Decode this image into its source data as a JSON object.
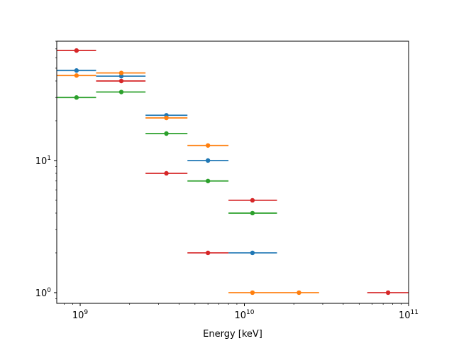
{
  "chart_data": {
    "type": "scatter",
    "xscale": "log",
    "yscale": "log",
    "xlabel": "Energy [keV]",
    "ylabel": "",
    "xlim": [
      720000000,
      100000000000
    ],
    "ylim": [
      0.83,
      80
    ],
    "grid": false,
    "x_ticks": [
      {
        "value": 1000000000,
        "base": "10",
        "exp": "9"
      },
      {
        "value": 10000000000,
        "base": "10",
        "exp": "10"
      },
      {
        "value": 100000000000,
        "base": "10",
        "exp": "11"
      }
    ],
    "y_ticks": [
      {
        "value": 1,
        "base": "10",
        "exp": "0"
      },
      {
        "value": 10,
        "base": "10",
        "exp": "1"
      }
    ],
    "series": [
      {
        "color": "#1f77b4",
        "points": [
          {
            "x": 950000000,
            "y": 48,
            "xerr": [
              720000000,
              1250000000
            ]
          },
          {
            "x": 1780000000,
            "y": 43.5,
            "xerr": [
              1250000000,
              2500000000
            ]
          },
          {
            "x": 3350000000,
            "y": 22,
            "xerr": [
              2500000000,
              4500000000
            ]
          },
          {
            "x": 6000000000,
            "y": 10,
            "xerr": [
              4500000000,
              8000000000
            ]
          },
          {
            "x": 11200000000,
            "y": 2,
            "xerr": [
              8000000000,
              15800000000
            ]
          }
        ]
      },
      {
        "color": "#ff7f0e",
        "points": [
          {
            "x": 950000000,
            "y": 44,
            "xerr": [
              720000000,
              1250000000
            ]
          },
          {
            "x": 1780000000,
            "y": 46,
            "xerr": [
              1250000000,
              2500000000
            ]
          },
          {
            "x": 3350000000,
            "y": 21,
            "xerr": [
              2500000000,
              4500000000
            ]
          },
          {
            "x": 6000000000,
            "y": 13,
            "xerr": [
              4500000000,
              8000000000
            ]
          },
          {
            "x": 11200000000,
            "y": 1,
            "xerr": [
              8000000000,
              15800000000
            ]
          },
          {
            "x": 21500000000,
            "y": 1,
            "xerr": [
              15800000000,
              28500000000
            ]
          }
        ]
      },
      {
        "color": "#2ca02c",
        "points": [
          {
            "x": 950000000,
            "y": 30,
            "xerr": [
              720000000,
              1250000000
            ]
          },
          {
            "x": 1780000000,
            "y": 33,
            "xerr": [
              1250000000,
              2500000000
            ]
          },
          {
            "x": 3350000000,
            "y": 16,
            "xerr": [
              2500000000,
              4500000000
            ]
          },
          {
            "x": 6000000000,
            "y": 7,
            "xerr": [
              4500000000,
              8000000000
            ]
          },
          {
            "x": 11200000000,
            "y": 4,
            "xerr": [
              8000000000,
              15800000000
            ]
          }
        ]
      },
      {
        "color": "#d62728",
        "points": [
          {
            "x": 950000000,
            "y": 68,
            "xerr": [
              720000000,
              1250000000
            ]
          },
          {
            "x": 1780000000,
            "y": 40,
            "xerr": [
              1250000000,
              2500000000
            ]
          },
          {
            "x": 3350000000,
            "y": 8,
            "xerr": [
              2500000000,
              4500000000
            ]
          },
          {
            "x": 6000000000,
            "y": 2,
            "xerr": [
              4500000000,
              8000000000
            ]
          },
          {
            "x": 11200000000,
            "y": 5,
            "xerr": [
              8000000000,
              15800000000
            ]
          },
          {
            "x": 75000000000,
            "y": 1,
            "xerr": [
              56000000000,
              100000000000
            ]
          }
        ]
      }
    ]
  }
}
